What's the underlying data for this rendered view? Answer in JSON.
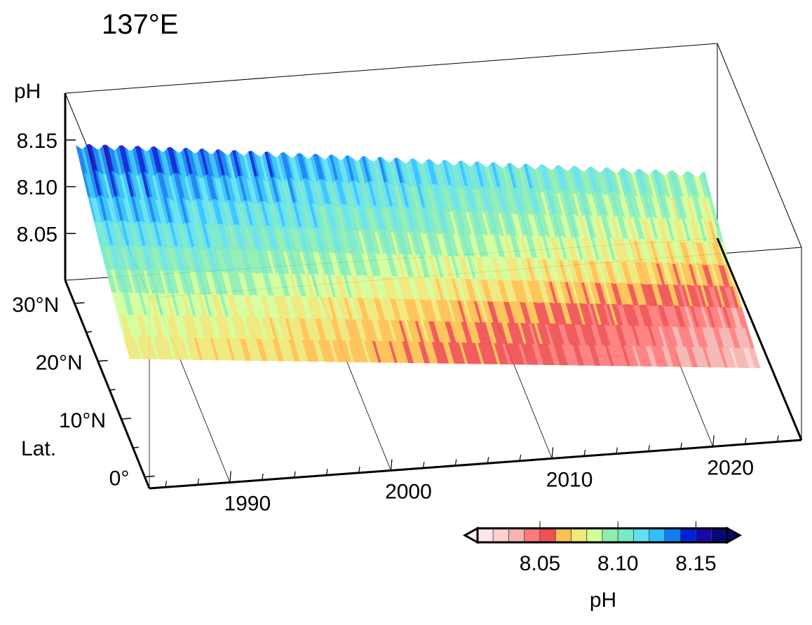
{
  "chart_data": {
    "type": "surface",
    "title": "137°E",
    "zlabel": "pH",
    "ylabel": "Lat.",
    "xlabel": "",
    "x_ticks": [
      "1990",
      "2000",
      "2010",
      "2020"
    ],
    "x_tick_values": [
      1990,
      2000,
      2010,
      2020
    ],
    "y_ticks": [
      "0°",
      "10°N",
      "20°N",
      "30°N"
    ],
    "y_tick_values": [
      0,
      10,
      20,
      30
    ],
    "z_ticks": [
      "8.05",
      "8.10",
      "8.15"
    ],
    "z_tick_values": [
      8.05,
      8.1,
      8.15
    ],
    "xlim": [
      1985,
      2025.5
    ],
    "ylim": [
      -2,
      34
    ],
    "zlim": [
      8.0,
      8.2
    ],
    "surface": {
      "years": [
        1985,
        1990,
        1995,
        2000,
        2005,
        2010,
        2015,
        2020,
        2023
      ],
      "lats": [
        3,
        10,
        20,
        34
      ],
      "mean_pH": [
        [
          8.075,
          8.072,
          8.068,
          8.062,
          8.056,
          8.05,
          8.044,
          8.035,
          8.03
        ],
        [
          8.085,
          8.082,
          8.077,
          8.071,
          8.065,
          8.058,
          8.052,
          8.044,
          8.04
        ],
        [
          8.115,
          8.112,
          8.106,
          8.1,
          8.094,
          8.088,
          8.082,
          8.076,
          8.072
        ],
        [
          8.15,
          8.147,
          8.141,
          8.135,
          8.128,
          8.122,
          8.116,
          8.11,
          8.106
        ]
      ],
      "seasonal_amplitude": 0.02
    },
    "colorbar": {
      "label": "pH",
      "ticks": [
        "8.05",
        "8.10",
        "8.15"
      ],
      "tick_values": [
        8.05,
        8.1,
        8.15
      ],
      "levels": [
        8.01,
        8.02,
        8.03,
        8.04,
        8.05,
        8.06,
        8.07,
        8.08,
        8.09,
        8.1,
        8.11,
        8.12,
        8.13,
        8.14,
        8.15,
        8.16,
        8.17
      ],
      "colors": [
        "#ffe6e6",
        "#ffd0d0",
        "#f5b4b0",
        "#ff7a7a",
        "#f05050",
        "#ffc050",
        "#f0e878",
        "#d2ff9a",
        "#8eeeb0",
        "#78e8c8",
        "#60e0f0",
        "#30c0ff",
        "#1080f0",
        "#0020d8",
        "#1808a8",
        "#080878"
      ],
      "under_color": "#fff0f0",
      "over_color": "#0a0a70",
      "extend": "both"
    }
  }
}
